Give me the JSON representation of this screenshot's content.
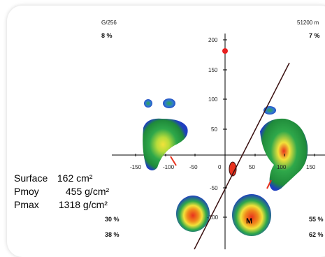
{
  "header": {
    "left_code": "G/256",
    "right_code": "51200 m"
  },
  "percentages": {
    "top_left": "8 %",
    "top_right": "7 %",
    "bottom_left_1": "30 %",
    "bottom_left_2": "38 %",
    "bottom_right_1": "55 %",
    "bottom_right_2": "62 %"
  },
  "axis": {
    "x_ticks": [
      "-150",
      "-100",
      "-50",
      "0",
      "50",
      "100",
      "150"
    ],
    "y_ticks": [
      "200",
      "150",
      "100",
      "50",
      "-50",
      "-100"
    ]
  },
  "marker_label": "M",
  "stats": {
    "surface_label": "Surface",
    "surface_value": "162 cm²",
    "pmoy_label": "Pmoy",
    "pmoy_value": "455 g/cm²",
    "pmax_label": "Pmax",
    "pmax_value": "1318 g/cm²"
  },
  "colors": {
    "low": "#1f3fbf",
    "mid": "#2fa84a",
    "high": "#f2e23a",
    "peak": "#e8321e",
    "center_dot": "#e82020",
    "line": "#3a1010"
  }
}
